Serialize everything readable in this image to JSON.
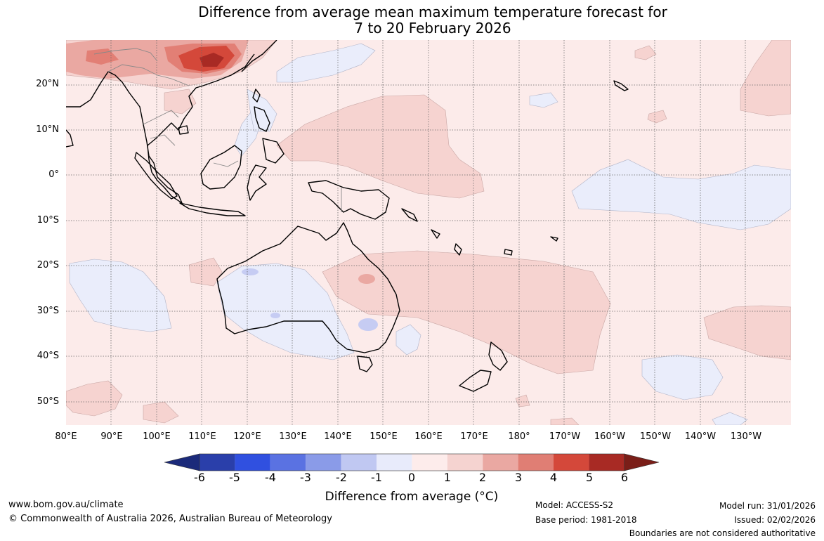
{
  "title_line1": "Difference from average mean maximum temperature forecast for",
  "title_line2": "7 to 20 February 2026",
  "latitude_labels": [
    "20°N",
    "10°N",
    "0°",
    "10°S",
    "20°S",
    "30°S",
    "40°S",
    "50°S"
  ],
  "longitude_labels": [
    "80°E",
    "90°E",
    "100°E",
    "110°E",
    "120°E",
    "130°E",
    "140°E",
    "150°E",
    "160°E",
    "170°E",
    "180°",
    "170°W",
    "160°W",
    "150°W",
    "140°W",
    "130°W"
  ],
  "colorbar": {
    "title": "Difference from average (°C)",
    "tick_labels": [
      "-6",
      "-5",
      "-4",
      "-3",
      "-2",
      "-1",
      "0",
      "1",
      "2",
      "3",
      "4",
      "5",
      "6"
    ],
    "colors": [
      "#1b2a7a",
      "#2a3faa",
      "#3050e0",
      "#5a72e2",
      "#8a9be8",
      "#c0c8f2",
      "#e8ebfb",
      "#fdeceb",
      "#f5d3d0",
      "#eaa8a2",
      "#e07e74",
      "#d4483a",
      "#a82a24",
      "#7a1e18"
    ]
  },
  "footer": {
    "website": "www.bom.gov.au/climate",
    "copyright": "© Commonwealth of Australia 2026, Australian Bureau of Meteorology",
    "model": "Model: ACCESS-S2",
    "base_period": "Base period: 1981-2018",
    "model_run": "Model run: 31/01/2026",
    "issued": "Issued: 02/02/2026",
    "disclaimer": "Boundaries are not considered authoritative"
  }
}
